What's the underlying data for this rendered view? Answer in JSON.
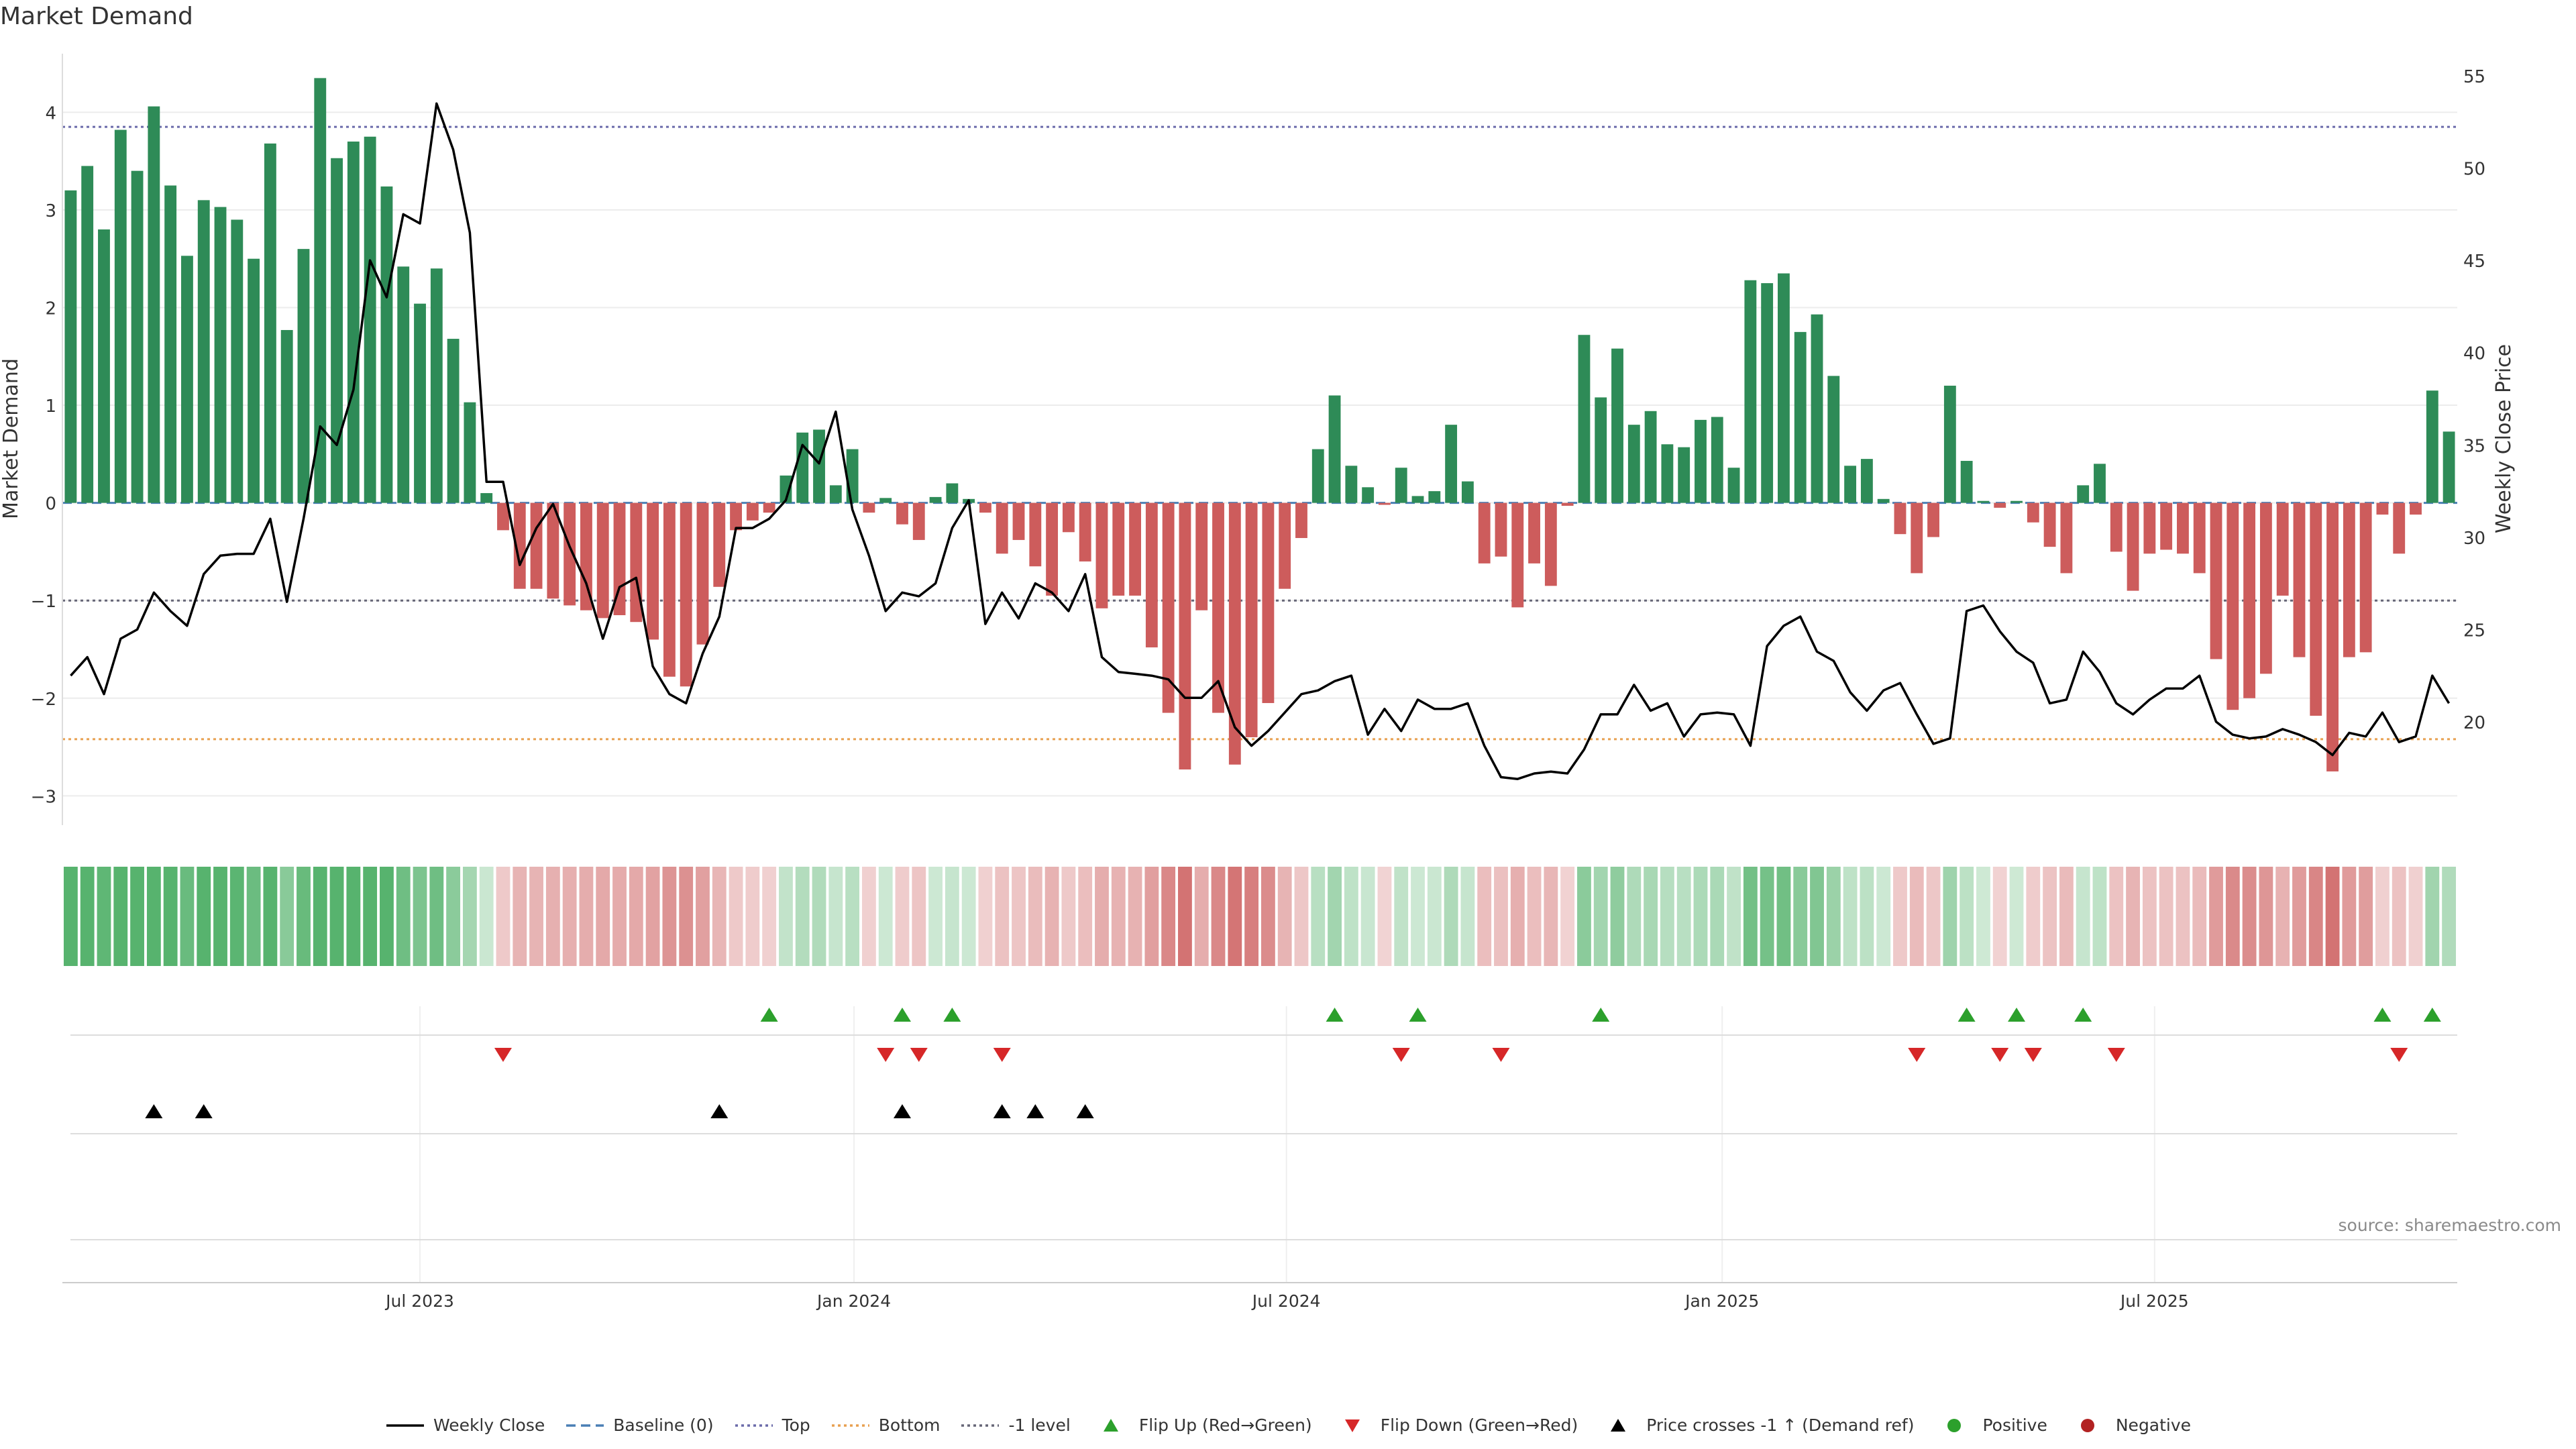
{
  "title": "Market Demand",
  "source": "source: sharemaestro.com",
  "colors": {
    "positive": "#2e8b57",
    "negative": "#cd5c5c",
    "price": "#000000",
    "top": "#6b6baa",
    "bottom": "#e8a050",
    "minus1": "#666677",
    "baseline": "#4a7fb5",
    "flip_up": "#2ca02c",
    "flip_down": "#d62728"
  },
  "legend": [
    {
      "key": "weekly_close",
      "label": "Weekly Close",
      "icon": "solid-line-icon"
    },
    {
      "key": "baseline",
      "label": "Baseline (0)",
      "icon": "dashed-line-icon"
    },
    {
      "key": "top",
      "label": "Top",
      "icon": "dotted-line-icon"
    },
    {
      "key": "bottom",
      "label": "Bottom",
      "icon": "dotted-line-icon"
    },
    {
      "key": "minus1",
      "label": "-1 level",
      "icon": "dotted-line-icon"
    },
    {
      "key": "flip_up",
      "label": "Flip Up (Red→Green)",
      "icon": "triangle-up-icon"
    },
    {
      "key": "flip_down",
      "label": "Flip Down (Green→Red)",
      "icon": "triangle-down-icon"
    },
    {
      "key": "price_cross",
      "label": "Price crosses -1 ↑ (Demand ref)",
      "icon": "triangle-up-icon"
    },
    {
      "key": "positive",
      "label": "Positive",
      "icon": "circle-icon"
    },
    {
      "key": "negative",
      "label": "Negative",
      "icon": "circle-icon"
    }
  ],
  "chart_data": {
    "type": "bar",
    "title": "Market Demand",
    "ylabel": "Market Demand",
    "y2label": "Weekly Close Price",
    "ylim": [
      -3.3,
      4.6
    ],
    "y2lim": [
      14.4,
      56.2
    ],
    "yticks": [
      4,
      3,
      2,
      1,
      0,
      -1,
      -2,
      -3
    ],
    "ytick_labels": [
      "4",
      "3",
      "2",
      "1",
      "0",
      "−1",
      "−2",
      "−3"
    ],
    "y2ticks": [
      55,
      50,
      45,
      40,
      35,
      30,
      25,
      20
    ],
    "xticks": [
      {
        "label": "Jul 2023",
        "week": 21.5
      },
      {
        "label": "Jan 2024",
        "week": 47.6
      },
      {
        "label": "Jul 2024",
        "week": 73.6
      },
      {
        "label": "Jan 2025",
        "week": 99.8
      },
      {
        "label": "Jul 2025",
        "week": 125.8
      }
    ],
    "reference_lines": {
      "baseline": 0,
      "top": 3.85,
      "bottom": -2.42,
      "minus1": -1
    },
    "demand": [
      3.2,
      3.45,
      2.8,
      3.82,
      3.4,
      4.06,
      3.25,
      2.53,
      3.1,
      3.03,
      2.9,
      2.5,
      3.68,
      1.77,
      2.6,
      4.35,
      3.53,
      3.7,
      3.75,
      3.24,
      2.42,
      2.04,
      2.4,
      1.68,
      1.03,
      0.1,
      -0.28,
      -0.88,
      -0.88,
      -0.98,
      -1.05,
      -1.1,
      -1.18,
      -1.15,
      -1.22,
      -1.4,
      -1.78,
      -1.88,
      -1.45,
      -0.86,
      -0.28,
      -0.18,
      -0.1,
      0.28,
      0.72,
      0.75,
      0.18,
      0.55,
      -0.1,
      0.05,
      -0.22,
      -0.38,
      0.06,
      0.2,
      0.04,
      -0.1,
      -0.52,
      -0.38,
      -0.65,
      -0.95,
      -0.3,
      -0.6,
      -1.08,
      -0.95,
      -0.95,
      -1.48,
      -2.15,
      -2.73,
      -1.1,
      -2.15,
      -2.68,
      -2.4,
      -2.05,
      -0.88,
      -0.36,
      0.55,
      1.1,
      0.38,
      0.16,
      -0.02,
      0.36,
      0.07,
      0.12,
      0.8,
      0.22,
      -0.62,
      -0.55,
      -1.07,
      -0.62,
      -0.85,
      -0.03,
      1.72,
      1.08,
      1.58,
      0.8,
      0.94,
      0.6,
      0.57,
      0.85,
      0.88,
      0.36,
      2.28,
      2.25,
      2.35,
      1.75,
      1.93,
      1.3,
      0.38,
      0.45,
      0.04,
      -0.32,
      -0.72,
      -0.35,
      1.2,
      0.43,
      0.02,
      -0.05,
      0.02,
      -0.2,
      -0.45,
      -0.72,
      0.18,
      0.4,
      -0.5,
      -0.9,
      -0.52,
      -0.48,
      -0.52,
      -0.72,
      -1.6,
      -2.12,
      -2.0,
      -1.75,
      -0.95,
      -1.58,
      -2.18,
      -2.75,
      -1.58,
      -1.53,
      -0.12,
      -0.52,
      -0.12,
      1.15,
      0.73
    ],
    "price": [
      22.5,
      23.5,
      21.5,
      24.5,
      25,
      27,
      26,
      25.2,
      28,
      29,
      29.1,
      29.1,
      31,
      26.5,
      31,
      36,
      35,
      38,
      45,
      43,
      47.5,
      47,
      53.5,
      51,
      46.5,
      33,
      33,
      28.5,
      30.5,
      31.8,
      29.5,
      27.5,
      24.5,
      27.3,
      27.8,
      23,
      21.5,
      21,
      23.7,
      25.7,
      30.5,
      30.5,
      31,
      32,
      35,
      34,
      36.8,
      31.5,
      29,
      26,
      27,
      26.8,
      27.5,
      30.5,
      32,
      25.3,
      27,
      25.6,
      27.5,
      27,
      26,
      28,
      23.5,
      22.7,
      22.6,
      22.5,
      22.3,
      21.3,
      21.3,
      22.2,
      19.7,
      18.7,
      19.5,
      20.5,
      21.5,
      21.7,
      22.2,
      22.5,
      19.3,
      20.7,
      19.5,
      21.2,
      20.7,
      20.7,
      21,
      18.7,
      17,
      16.9,
      17.2,
      17.3,
      17.2,
      18.5,
      20.4,
      20.4,
      22,
      20.6,
      21,
      19.2,
      20.4,
      20.5,
      20.4,
      18.7,
      24.1,
      25.2,
      25.7,
      23.8,
      23.3,
      21.6,
      20.6,
      21.7,
      22.1,
      20.4,
      18.8,
      19.1,
      26,
      26.3,
      24.9,
      23.8,
      23.2,
      21,
      21.2,
      23.8,
      22.7,
      21,
      20.4,
      21.2,
      21.8,
      21.8,
      22.5,
      20,
      19.3,
      19.1,
      19.2,
      19.6,
      19.3,
      18.9,
      18.2,
      19.4,
      19.2,
      20.5,
      18.9,
      19.2,
      22.5,
      21
    ],
    "flip_up_weeks": [
      42,
      50,
      53,
      76,
      81,
      92,
      114,
      117,
      121,
      139,
      142
    ],
    "flip_down_weeks": [
      26,
      49,
      51,
      56,
      80,
      86,
      111,
      116,
      118,
      123,
      140
    ],
    "price_cross_weeks": [
      5,
      8,
      39,
      50,
      56,
      58,
      61
    ]
  }
}
